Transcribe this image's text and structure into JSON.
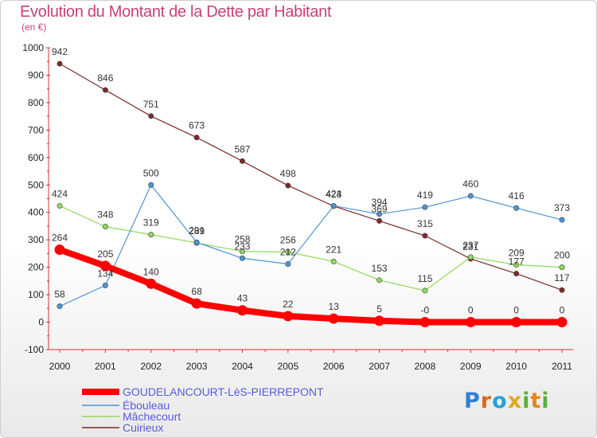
{
  "header": {
    "title": "Evolution du Montant de la Dette par Habitant",
    "unit": "(en €)"
  },
  "brand": {
    "letters": [
      "P",
      "r",
      "o",
      "x",
      "i",
      "t",
      "i"
    ]
  },
  "chart_data": {
    "type": "line",
    "title": "Evolution du Montant de la Dette par Habitant",
    "ylabel": "(en €)",
    "xlabel": "",
    "x": [
      "2000",
      "2001",
      "2002",
      "2003",
      "2004",
      "2005",
      "2006",
      "2007",
      "2008",
      "2009",
      "2010",
      "2011"
    ],
    "ylim": [
      -100,
      1000
    ],
    "yticks": [
      "-100",
      "0",
      "100",
      "200",
      "300",
      "400",
      "500",
      "600",
      "700",
      "800",
      "900",
      "1000"
    ],
    "grid": false,
    "legend_position": "bottom-left",
    "series": [
      {
        "name": "GOUDELANCOURT-LèS-PIERREPONT",
        "color": "#ff0000",
        "width": 8,
        "values": [
          264,
          205,
          140,
          68,
          43,
          22,
          13,
          5,
          0,
          0,
          0,
          0
        ],
        "labels": [
          "264",
          "205",
          "140",
          "68",
          "43",
          "22",
          "13",
          "5",
          "-0",
          "0",
          "0",
          "0"
        ]
      },
      {
        "name": "Ébouleau",
        "color": "#4f93d0",
        "width": 1.2,
        "values": [
          58,
          134,
          500,
          291,
          233,
          212,
          424,
          394,
          419,
          460,
          416,
          373
        ],
        "labels": [
          "58",
          "134",
          "500",
          "291",
          "233",
          "212",
          "424",
          "394",
          "419",
          "460",
          "416",
          "373"
        ]
      },
      {
        "name": "Mâchecourt",
        "color": "#90d85a",
        "width": 1.2,
        "values": [
          424,
          348,
          319,
          289,
          258,
          256,
          221,
          153,
          115,
          237,
          209,
          200
        ],
        "labels": [
          "424",
          "348",
          "319",
          "289",
          "258",
          "256",
          "221",
          "153",
          "115",
          "237",
          "209",
          "200"
        ]
      },
      {
        "name": "Cuirieux",
        "color": "#7a2a2a",
        "width": 1.2,
        "values": [
          942,
          846,
          751,
          673,
          587,
          498,
          423,
          369,
          315,
          231,
          177,
          117
        ],
        "labels": [
          "942",
          "846",
          "751",
          "673",
          "587",
          "498",
          "423",
          "369",
          "315",
          "231",
          "177",
          "117"
        ]
      }
    ]
  }
}
